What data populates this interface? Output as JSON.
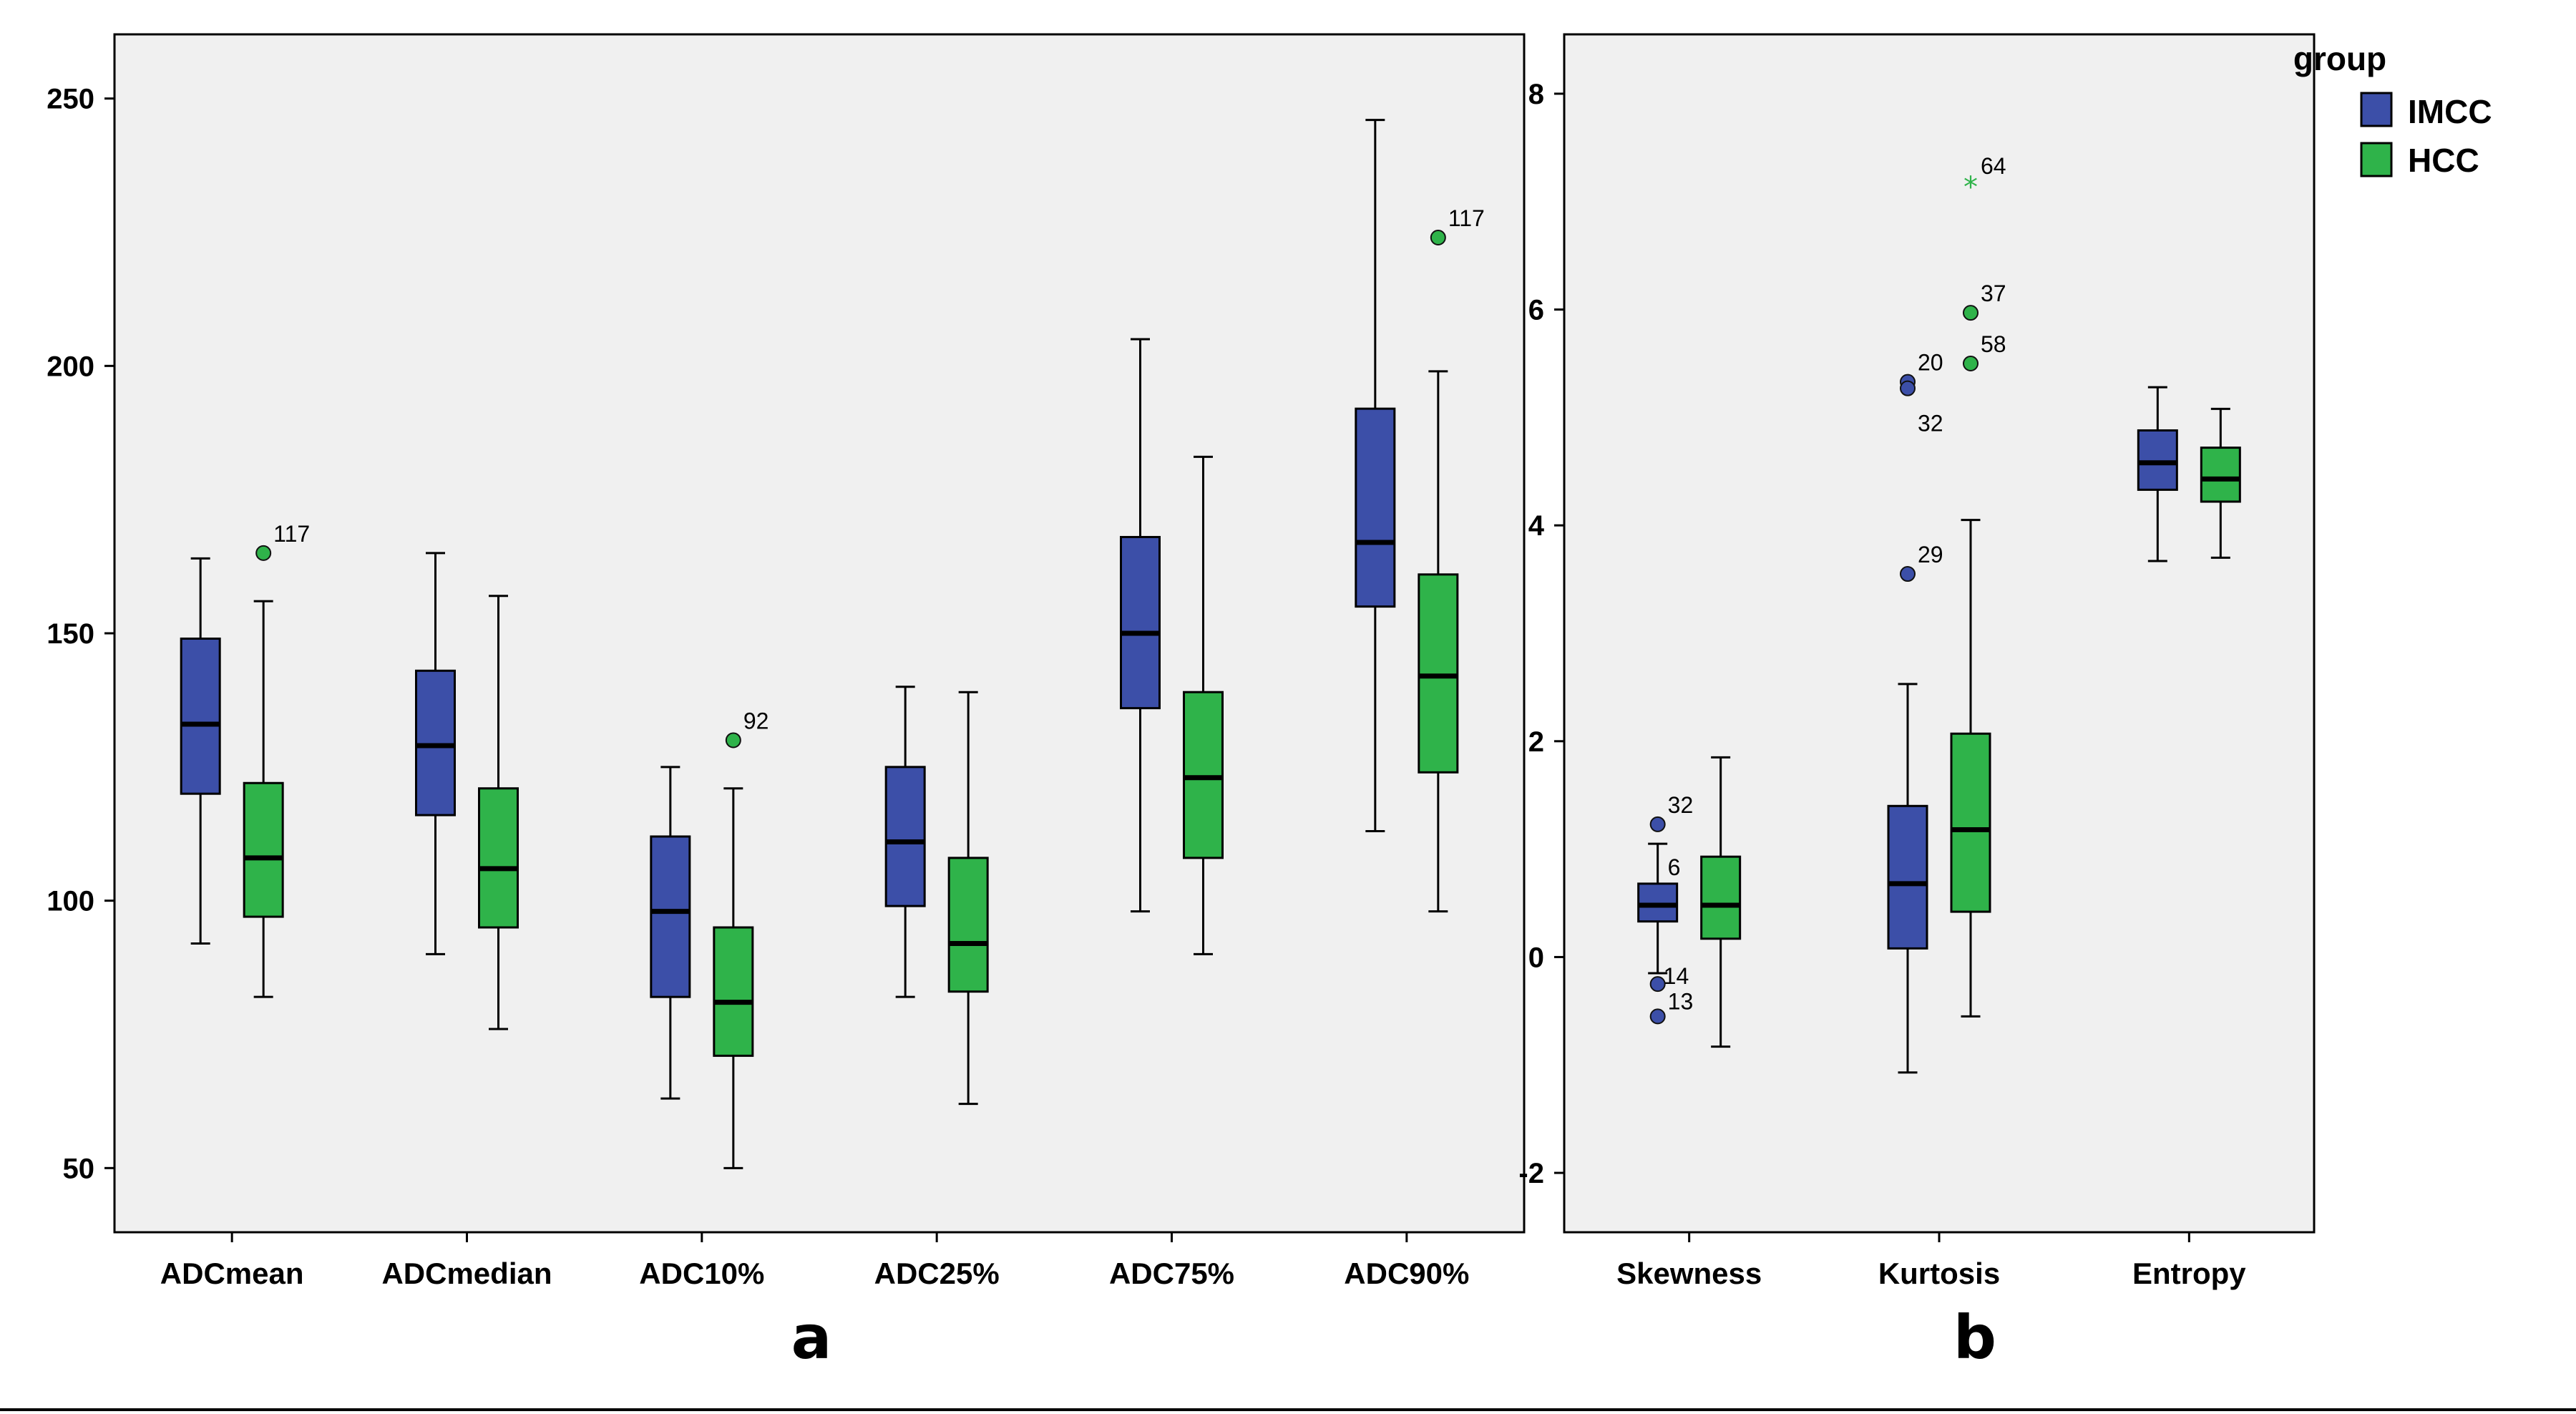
{
  "legend": {
    "title": "group",
    "entries": [
      {
        "name": "IMCC",
        "color": "#3C4FA8"
      },
      {
        "name": "HCC",
        "color": "#2FB34A"
      }
    ]
  },
  "chart_data": [
    {
      "type": "boxplot",
      "panel_label": "a",
      "ylim": [
        38,
        262
      ],
      "yticks": [
        50,
        100,
        150,
        200,
        250
      ],
      "grid": false,
      "categories": [
        "ADCmean",
        "ADCmedian",
        "ADC10%",
        "ADC25%",
        "ADC75%",
        "ADC90%"
      ],
      "series": [
        {
          "name": "IMCC",
          "boxes": [
            {
              "min": 92,
              "q1": 120,
              "median": 133,
              "q3": 149,
              "max": 164,
              "outliers": []
            },
            {
              "min": 90,
              "q1": 116,
              "median": 129,
              "q3": 143,
              "max": 165,
              "outliers": []
            },
            {
              "min": 63,
              "q1": 82,
              "median": 98,
              "q3": 112,
              "max": 125,
              "outliers": []
            },
            {
              "min": 82,
              "q1": 99,
              "median": 111,
              "q3": 125,
              "max": 140,
              "outliers": []
            },
            {
              "min": 98,
              "q1": 136,
              "median": 150,
              "q3": 168,
              "max": 205,
              "outliers": []
            },
            {
              "min": 113,
              "q1": 155,
              "median": 167,
              "q3": 192,
              "max": 246,
              "outliers": []
            }
          ]
        },
        {
          "name": "HCC",
          "boxes": [
            {
              "min": 82,
              "q1": 97,
              "median": 108,
              "q3": 122,
              "max": 156,
              "outliers": [
                {
                  "value": 165,
                  "label": "117",
                  "marker": "circle"
                }
              ]
            },
            {
              "min": 76,
              "q1": 95,
              "median": 106,
              "q3": 121,
              "max": 157,
              "outliers": []
            },
            {
              "min": 50,
              "q1": 71,
              "median": 81,
              "q3": 95,
              "max": 121,
              "outliers": [
                {
                  "value": 130,
                  "label": "92",
                  "marker": "circle"
                }
              ]
            },
            {
              "min": 62,
              "q1": 83,
              "median": 92,
              "q3": 108,
              "max": 139,
              "outliers": []
            },
            {
              "min": 90,
              "q1": 108,
              "median": 123,
              "q3": 139,
              "max": 183,
              "outliers": []
            },
            {
              "min": 98,
              "q1": 124,
              "median": 142,
              "q3": 161,
              "max": 199,
              "outliers": [
                {
                  "value": 224,
                  "label": "117",
                  "marker": "circle"
                }
              ]
            }
          ]
        }
      ]
    },
    {
      "type": "boxplot",
      "panel_label": "b",
      "ylim": [
        -2.55,
        8.55
      ],
      "yticks": [
        -2,
        0,
        2,
        4,
        6,
        8
      ],
      "grid": false,
      "categories": [
        "Skewness",
        "Kurtosis",
        "Entropy"
      ],
      "series": [
        {
          "name": "IMCC",
          "boxes": [
            {
              "min": -0.15,
              "q1": 0.33,
              "median": 0.48,
              "q3": 0.68,
              "max": 1.05,
              "outliers": [
                {
                  "value": 1.23,
                  "label": "32",
                  "marker": "circle"
                },
                {
                  "value": 1.05,
                  "label": "6",
                  "marker": "none"
                },
                {
                  "value": -0.25,
                  "label": "14",
                  "marker": "circle"
                },
                {
                  "value": -0.55,
                  "label": "13",
                  "marker": "circle"
                }
              ]
            },
            {
              "min": -1.07,
              "q1": 0.08,
              "median": 0.68,
              "q3": 1.4,
              "max": 2.53,
              "outliers": [
                {
                  "value": 5.33,
                  "label": "20",
                  "marker": "circle"
                },
                {
                  "value": 5.27,
                  "label": "32",
                  "marker": "circle"
                },
                {
                  "value": 3.55,
                  "label": "29",
                  "marker": "circle"
                }
              ]
            },
            {
              "min": 3.67,
              "q1": 4.33,
              "median": 4.58,
              "q3": 4.88,
              "max": 5.28,
              "outliers": []
            }
          ]
        },
        {
          "name": "HCC",
          "boxes": [
            {
              "min": -0.83,
              "q1": 0.17,
              "median": 0.48,
              "q3": 0.93,
              "max": 1.85,
              "outliers": []
            },
            {
              "min": -0.55,
              "q1": 0.42,
              "median": 1.18,
              "q3": 2.07,
              "max": 4.05,
              "outliers": [
                {
                  "value": 7.15,
                  "label": "64",
                  "marker": "star"
                },
                {
                  "value": 5.97,
                  "label": "37",
                  "marker": "circle"
                },
                {
                  "value": 5.5,
                  "label": "58",
                  "marker": "circle"
                }
              ]
            },
            {
              "min": 3.7,
              "q1": 4.22,
              "median": 4.43,
              "q3": 4.72,
              "max": 5.08,
              "outliers": []
            }
          ]
        }
      ]
    }
  ]
}
